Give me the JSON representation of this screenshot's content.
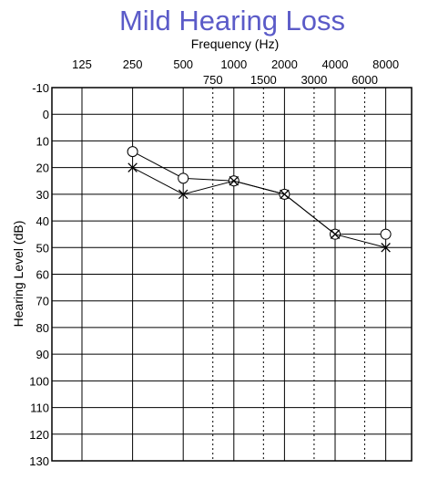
{
  "chart_data": {
    "type": "scatter",
    "title": "Mild Hearing Loss",
    "title_color": "#5b5bc8",
    "xlabel": "Frequency (Hz)",
    "ylabel": "Hearing Level (dB)",
    "x_ticks_major": [
      125,
      250,
      500,
      1000,
      2000,
      4000,
      8000
    ],
    "x_ticks_minor": [
      750,
      1500,
      3000,
      6000
    ],
    "x_scale": "log2",
    "y_ticks": [
      -10,
      0,
      10,
      20,
      30,
      40,
      50,
      60,
      70,
      80,
      90,
      100,
      110,
      120,
      130
    ],
    "ylim": [
      -10,
      130
    ],
    "y_inverted": true,
    "grid": true,
    "series": [
      {
        "marker": "circle",
        "x": [
          250,
          500,
          1000,
          2000,
          4000,
          8000
        ],
        "values": [
          14,
          24,
          25,
          30,
          45,
          45
        ]
      },
      {
        "marker": "x",
        "x": [
          250,
          500,
          1000,
          2000,
          4000,
          8000
        ],
        "values": [
          20,
          30,
          25,
          30,
          45,
          50
        ]
      }
    ]
  }
}
